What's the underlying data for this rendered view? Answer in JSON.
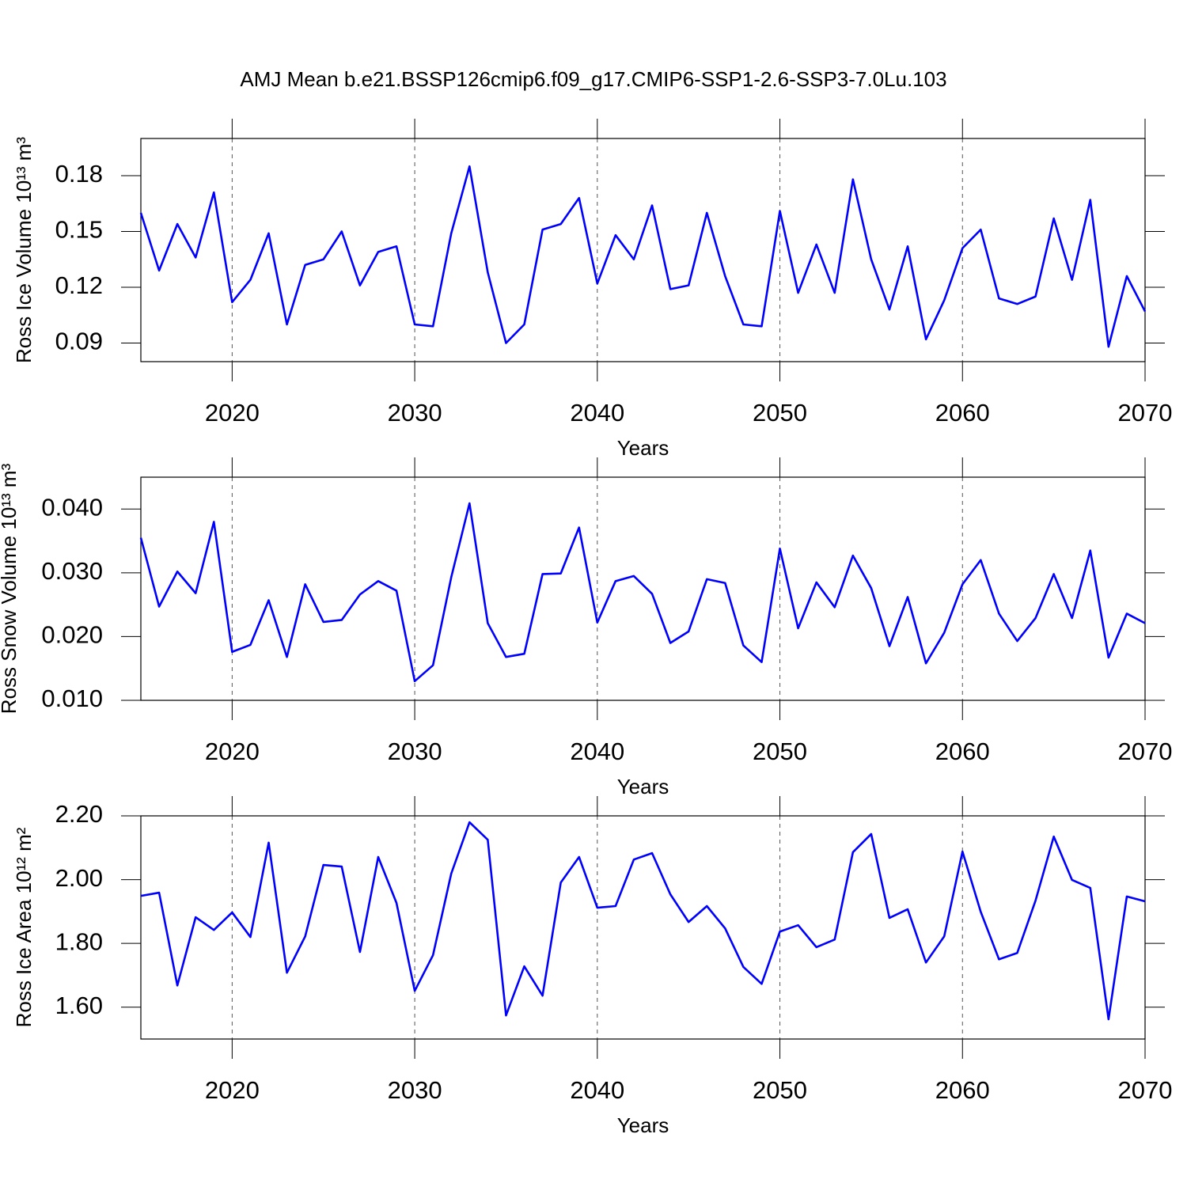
{
  "chart_data": [
    {
      "type": "line",
      "title": "AMJ Mean b.e21.BSSP126cmip6.f09_g17.CMIP6-SSP1-2.6-SSP3-7.0Lu.103",
      "xlabel": "Years",
      "ylabel": "Ross Ice Volume 10¹³ m³",
      "color": "#0000ff",
      "grid": "x",
      "xlim": [
        2015,
        2070
      ],
      "xticks": [
        2020,
        2030,
        2040,
        2050,
        2060,
        2070
      ],
      "ylim": [
        0.08,
        0.2
      ],
      "yticks": [
        0.09,
        0.12,
        0.15,
        0.18
      ],
      "x": [
        2015,
        2016,
        2017,
        2018,
        2019,
        2020,
        2021,
        2022,
        2023,
        2024,
        2025,
        2026,
        2027,
        2028,
        2029,
        2030,
        2031,
        2032,
        2033,
        2034,
        2035,
        2036,
        2037,
        2038,
        2039,
        2040,
        2041,
        2042,
        2043,
        2044,
        2045,
        2046,
        2047,
        2048,
        2049,
        2050,
        2051,
        2052,
        2053,
        2054,
        2055,
        2056,
        2057,
        2058,
        2059,
        2060,
        2061,
        2062,
        2063,
        2064,
        2065,
        2066,
        2067,
        2068,
        2069,
        2070
      ],
      "values": [
        0.16,
        0.129,
        0.154,
        0.136,
        0.171,
        0.112,
        0.124,
        0.149,
        0.1,
        0.132,
        0.135,
        0.15,
        0.121,
        0.139,
        0.142,
        0.1,
        0.099,
        0.149,
        0.185,
        0.128,
        0.09,
        0.1,
        0.151,
        0.154,
        0.168,
        0.122,
        0.148,
        0.135,
        0.164,
        0.119,
        0.121,
        0.16,
        0.126,
        0.1,
        0.099,
        0.161,
        0.117,
        0.143,
        0.117,
        0.178,
        0.135,
        0.108,
        0.142,
        0.092,
        0.113,
        0.141,
        0.151,
        0.114,
        0.111,
        0.115,
        0.157,
        0.124,
        0.167,
        0.088,
        0.126,
        0.107
      ]
    },
    {
      "type": "line",
      "xlabel": "Years",
      "ylabel": "Ross Snow Volume 10¹³ m³",
      "color": "#0000ff",
      "grid": "x",
      "xlim": [
        2015,
        2070
      ],
      "xticks": [
        2020,
        2030,
        2040,
        2050,
        2060,
        2070
      ],
      "ylim": [
        0.01,
        0.045
      ],
      "yticks": [
        {
          "value": 0.01,
          "label": "0.010"
        },
        {
          "value": 0.02,
          "label": "0.020"
        },
        {
          "value": 0.03,
          "label": "0.030"
        },
        {
          "value": 0.04,
          "label": "0.040"
        }
      ],
      "x": [
        2015,
        2016,
        2017,
        2018,
        2019,
        2020,
        2021,
        2022,
        2023,
        2024,
        2025,
        2026,
        2027,
        2028,
        2029,
        2030,
        2031,
        2032,
        2033,
        2034,
        2035,
        2036,
        2037,
        2038,
        2039,
        2040,
        2041,
        2042,
        2043,
        2044,
        2045,
        2046,
        2047,
        2048,
        2049,
        2050,
        2051,
        2052,
        2053,
        2054,
        2055,
        2056,
        2057,
        2058,
        2059,
        2060,
        2061,
        2062,
        2063,
        2064,
        2065,
        2066,
        2067,
        2068,
        2069,
        2070
      ],
      "values": [
        0.0355,
        0.0247,
        0.0302,
        0.0268,
        0.038,
        0.0176,
        0.0187,
        0.0257,
        0.0168,
        0.0282,
        0.0223,
        0.0226,
        0.0266,
        0.0287,
        0.0272,
        0.013,
        0.0155,
        0.0293,
        0.0409,
        0.0221,
        0.0168,
        0.0173,
        0.0298,
        0.0299,
        0.0371,
        0.0222,
        0.0287,
        0.0295,
        0.0267,
        0.019,
        0.0208,
        0.029,
        0.0284,
        0.0186,
        0.016,
        0.0338,
        0.0213,
        0.0285,
        0.0246,
        0.0327,
        0.0276,
        0.0185,
        0.0262,
        0.0158,
        0.0206,
        0.0282,
        0.032,
        0.0236,
        0.0193,
        0.0229,
        0.0298,
        0.0229,
        0.0335,
        0.0167,
        0.0236,
        0.0221
      ]
    },
    {
      "type": "line",
      "xlabel": "Years",
      "ylabel": "Ross Ice Area 10¹² m²",
      "color": "#0000ff",
      "grid": "x",
      "xlim": [
        2015,
        2070
      ],
      "xticks": [
        2020,
        2030,
        2040,
        2050,
        2060,
        2070
      ],
      "ylim": [
        1.5,
        2.2
      ],
      "yticks": [
        {
          "value": 1.6,
          "label": "1.60"
        },
        {
          "value": 1.8,
          "label": "1.80"
        },
        {
          "value": 2.0,
          "label": "2.00"
        },
        {
          "value": 2.2,
          "label": "2.20"
        }
      ],
      "x": [
        2015,
        2016,
        2017,
        2018,
        2019,
        2020,
        2021,
        2022,
        2023,
        2024,
        2025,
        2026,
        2027,
        2028,
        2029,
        2030,
        2031,
        2032,
        2033,
        2034,
        2035,
        2036,
        2037,
        2038,
        2039,
        2040,
        2041,
        2042,
        2043,
        2044,
        2045,
        2046,
        2047,
        2048,
        2049,
        2050,
        2051,
        2052,
        2053,
        2054,
        2055,
        2056,
        2057,
        2058,
        2059,
        2060,
        2061,
        2062,
        2063,
        2064,
        2065,
        2066,
        2067,
        2068,
        2069,
        2070
      ],
      "values": [
        1.949,
        1.959,
        1.668,
        1.882,
        1.842,
        1.897,
        1.82,
        2.116,
        1.708,
        1.822,
        2.046,
        2.041,
        1.773,
        2.071,
        1.927,
        1.651,
        1.763,
        2.019,
        2.18,
        2.125,
        1.574,
        1.728,
        1.636,
        1.991,
        2.071,
        1.912,
        1.917,
        2.063,
        2.083,
        1.954,
        1.867,
        1.917,
        1.847,
        1.726,
        1.673,
        1.837,
        1.857,
        1.788,
        1.812,
        2.086,
        2.143,
        1.88,
        1.907,
        1.74,
        1.822,
        2.088,
        1.899,
        1.75,
        1.77,
        1.934,
        2.135,
        1.999,
        1.974,
        1.562,
        1.947,
        1.932
      ]
    }
  ]
}
